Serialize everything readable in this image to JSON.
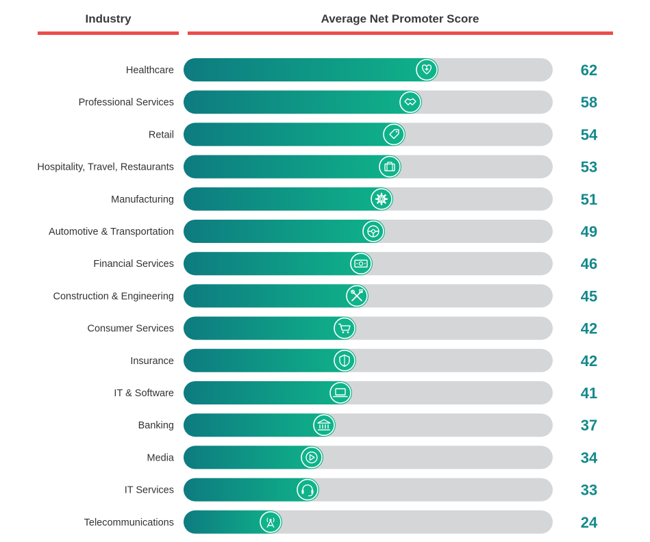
{
  "headers": {
    "industry": "Industry",
    "score": "Average Net Promoter Score"
  },
  "colors": {
    "header_line": "#ec4c4c",
    "bar_start": "#0e7b80",
    "bar_end": "#0fb38a",
    "track": "#d5d6d7",
    "value_text": "#14888c"
  },
  "chart_data": {
    "type": "bar",
    "orientation": "horizontal",
    "categories": [
      "Healthcare",
      "Professional Services",
      "Retail",
      "Hospitality, Travel, Restaurants",
      "Manufacturing",
      "Automotive & Transportation",
      "Financial Services",
      "Construction & Engineering",
      "Consumer Services",
      "Insurance",
      "IT & Software",
      "Banking",
      "Media",
      "IT Services",
      "Telecommunications"
    ],
    "values": [
      62,
      58,
      54,
      53,
      51,
      49,
      46,
      45,
      42,
      42,
      41,
      37,
      34,
      33,
      24
    ],
    "icons": [
      "heart-plus-icon",
      "handshake-icon",
      "price-tag-icon",
      "suitcase-icon",
      "gear-icon",
      "steering-wheel-icon",
      "banknote-icon",
      "tools-icon",
      "shopping-cart-icon",
      "shield-icon",
      "laptop-icon",
      "bank-icon",
      "play-icon",
      "headset-icon",
      "antenna-icon"
    ],
    "xlim": [
      0,
      100
    ],
    "title": "",
    "legend": "none",
    "grid": false
  }
}
